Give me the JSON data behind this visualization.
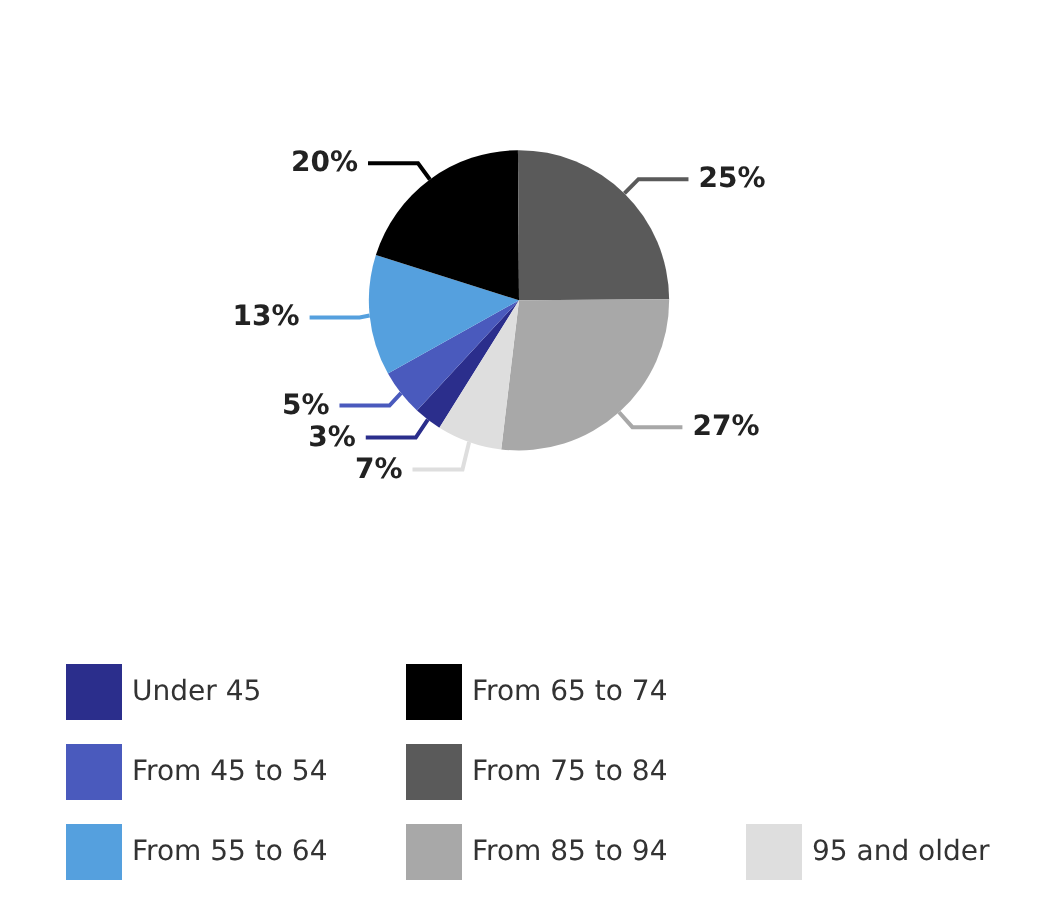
{
  "chart_data": {
    "type": "pie",
    "categories": [
      "Under 45",
      "From 45 to 54",
      "From 55 to 64",
      "From 65 to 74",
      "From 75 to 84",
      "From 85 to 94",
      "95 and older"
    ],
    "values": [
      3,
      5,
      13,
      20,
      25,
      27,
      7
    ],
    "value_labels": [
      "3%",
      "5%",
      "13%",
      "20%",
      "25%",
      "27%",
      "7%"
    ],
    "colors": [
      "#2b2e8c",
      "#4a5abd",
      "#55a0de",
      "#000000",
      "#5a5a5a",
      "#a8a8a8",
      "#dedede"
    ],
    "legend": "bottom"
  }
}
